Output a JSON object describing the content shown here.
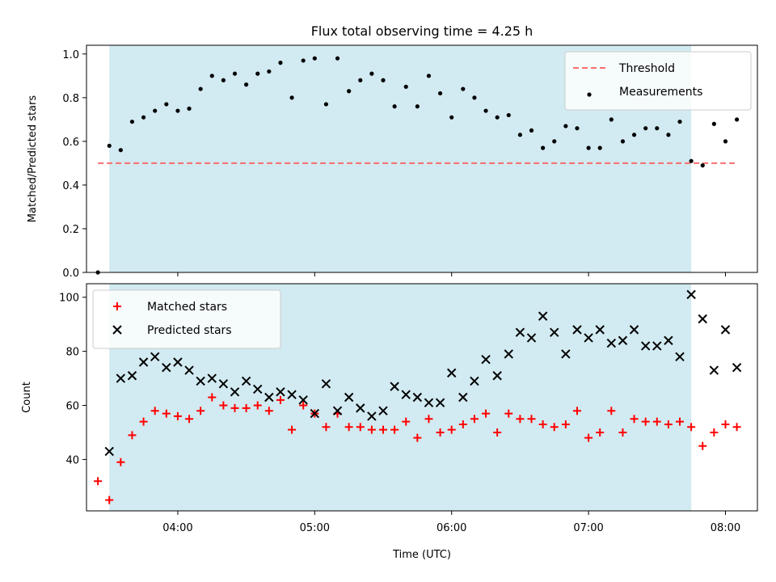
{
  "chart_data": {
    "title": "Flux total observing time = 4.25 h",
    "x_axis": {
      "label": "Time (UTC)",
      "range": [
        "03:20",
        "08:14"
      ],
      "tick_labels": [
        "04:00",
        "05:00",
        "06:00",
        "07:00",
        "08:00"
      ]
    },
    "highlight_span": {
      "start": "03:30",
      "end": "07:45",
      "color": "#add8e6"
    },
    "panels": [
      {
        "type": "scatter",
        "ylabel": "Matched/Predicted stars",
        "ylim": [
          0.0,
          1.04
        ],
        "y_tick_labels": [
          "0.0",
          "0.2",
          "0.4",
          "0.6",
          "0.8",
          "1.0"
        ],
        "grid": false,
        "legend_position": "upper-right",
        "threshold": {
          "name": "Threshold",
          "value": 0.5,
          "x_start": "03:25",
          "x_end": "08:05",
          "color": "#ff5555",
          "style": "dashed"
        },
        "series": [
          {
            "name": "Measurements",
            "color": "#000000",
            "marker": "dot",
            "points": [
              [
                "03:25",
                0.0
              ],
              [
                "03:30",
                0.58
              ],
              [
                "03:35",
                0.56
              ],
              [
                "03:40",
                0.69
              ],
              [
                "03:45",
                0.71
              ],
              [
                "03:50",
                0.74
              ],
              [
                "03:55",
                0.77
              ],
              [
                "04:00",
                0.74
              ],
              [
                "04:05",
                0.75
              ],
              [
                "04:10",
                0.84
              ],
              [
                "04:15",
                0.9
              ],
              [
                "04:20",
                0.88
              ],
              [
                "04:25",
                0.91
              ],
              [
                "04:30",
                0.86
              ],
              [
                "04:35",
                0.91
              ],
              [
                "04:40",
                0.92
              ],
              [
                "04:45",
                0.96
              ],
              [
                "04:50",
                0.8
              ],
              [
                "04:55",
                0.97
              ],
              [
                "05:00",
                0.98
              ],
              [
                "05:05",
                0.77
              ],
              [
                "05:10",
                0.98
              ],
              [
                "05:15",
                0.83
              ],
              [
                "05:20",
                0.88
              ],
              [
                "05:25",
                0.91
              ],
              [
                "05:30",
                0.88
              ],
              [
                "05:35",
                0.76
              ],
              [
                "05:40",
                0.85
              ],
              [
                "05:45",
                0.76
              ],
              [
                "05:50",
                0.9
              ],
              [
                "05:55",
                0.82
              ],
              [
                "06:00",
                0.71
              ],
              [
                "06:05",
                0.84
              ],
              [
                "06:10",
                0.8
              ],
              [
                "06:15",
                0.74
              ],
              [
                "06:20",
                0.71
              ],
              [
                "06:25",
                0.72
              ],
              [
                "06:30",
                0.63
              ],
              [
                "06:35",
                0.65
              ],
              [
                "06:40",
                0.57
              ],
              [
                "06:45",
                0.6
              ],
              [
                "06:50",
                0.67
              ],
              [
                "06:55",
                0.66
              ],
              [
                "07:00",
                0.57
              ],
              [
                "07:05",
                0.57
              ],
              [
                "07:10",
                0.7
              ],
              [
                "07:15",
                0.6
              ],
              [
                "07:20",
                0.63
              ],
              [
                "07:25",
                0.66
              ],
              [
                "07:30",
                0.66
              ],
              [
                "07:35",
                0.63
              ],
              [
                "07:40",
                0.69
              ],
              [
                "07:45",
                0.51
              ],
              [
                "07:50",
                0.49
              ],
              [
                "07:55",
                0.68
              ],
              [
                "08:00",
                0.6
              ],
              [
                "08:05",
                0.7
              ]
            ]
          }
        ]
      },
      {
        "type": "scatter",
        "ylabel": "Count",
        "ylim": [
          21,
          105
        ],
        "y_tick_labels": [
          "40",
          "60",
          "80",
          "100"
        ],
        "grid": false,
        "legend_position": "upper-left",
        "series": [
          {
            "name": "Matched stars",
            "color": "#ff0000",
            "marker": "plus",
            "points": [
              [
                "03:25",
                32
              ],
              [
                "03:30",
                25
              ],
              [
                "03:35",
                39
              ],
              [
                "03:40",
                49
              ],
              [
                "03:45",
                54
              ],
              [
                "03:50",
                58
              ],
              [
                "03:55",
                57
              ],
              [
                "04:00",
                56
              ],
              [
                "04:05",
                55
              ],
              [
                "04:10",
                58
              ],
              [
                "04:15",
                63
              ],
              [
                "04:20",
                60
              ],
              [
                "04:25",
                59
              ],
              [
                "04:30",
                59
              ],
              [
                "04:35",
                60
              ],
              [
                "04:40",
                58
              ],
              [
                "04:45",
                62
              ],
              [
                "04:50",
                51
              ],
              [
                "04:55",
                60
              ],
              [
                "05:00",
                57
              ],
              [
                "05:05",
                52
              ],
              [
                "05:10",
                57
              ],
              [
                "05:15",
                52
              ],
              [
                "05:20",
                52
              ],
              [
                "05:25",
                51
              ],
              [
                "05:30",
                51
              ],
              [
                "05:35",
                51
              ],
              [
                "05:40",
                54
              ],
              [
                "05:45",
                48
              ],
              [
                "05:50",
                55
              ],
              [
                "05:55",
                50
              ],
              [
                "06:00",
                51
              ],
              [
                "06:05",
                53
              ],
              [
                "06:10",
                55
              ],
              [
                "06:15",
                57
              ],
              [
                "06:20",
                50
              ],
              [
                "06:25",
                57
              ],
              [
                "06:30",
                55
              ],
              [
                "06:35",
                55
              ],
              [
                "06:40",
                53
              ],
              [
                "06:45",
                52
              ],
              [
                "06:50",
                53
              ],
              [
                "06:55",
                58
              ],
              [
                "07:00",
                48
              ],
              [
                "07:05",
                50
              ],
              [
                "07:10",
                58
              ],
              [
                "07:15",
                50
              ],
              [
                "07:20",
                55
              ],
              [
                "07:25",
                54
              ],
              [
                "07:30",
                54
              ],
              [
                "07:35",
                53
              ],
              [
                "07:40",
                54
              ],
              [
                "07:45",
                52
              ],
              [
                "07:50",
                45
              ],
              [
                "07:55",
                50
              ],
              [
                "08:00",
                53
              ],
              [
                "08:05",
                52
              ]
            ]
          },
          {
            "name": "Predicted stars",
            "color": "#000000",
            "marker": "x",
            "points": [
              [
                "03:30",
                43
              ],
              [
                "03:35",
                70
              ],
              [
                "03:40",
                71
              ],
              [
                "03:45",
                76
              ],
              [
                "03:50",
                78
              ],
              [
                "03:55",
                74
              ],
              [
                "04:00",
                76
              ],
              [
                "04:05",
                73
              ],
              [
                "04:10",
                69
              ],
              [
                "04:15",
                70
              ],
              [
                "04:20",
                68
              ],
              [
                "04:25",
                65
              ],
              [
                "04:30",
                69
              ],
              [
                "04:35",
                66
              ],
              [
                "04:40",
                63
              ],
              [
                "04:45",
                65
              ],
              [
                "04:50",
                64
              ],
              [
                "04:55",
                62
              ],
              [
                "05:00",
                57
              ],
              [
                "05:05",
                68
              ],
              [
                "05:10",
                58
              ],
              [
                "05:15",
                63
              ],
              [
                "05:20",
                59
              ],
              [
                "05:25",
                56
              ],
              [
                "05:30",
                58
              ],
              [
                "05:35",
                67
              ],
              [
                "05:40",
                64
              ],
              [
                "05:45",
                63
              ],
              [
                "05:50",
                61
              ],
              [
                "05:55",
                61
              ],
              [
                "06:00",
                72
              ],
              [
                "06:05",
                63
              ],
              [
                "06:10",
                69
              ],
              [
                "06:15",
                77
              ],
              [
                "06:20",
                71
              ],
              [
                "06:25",
                79
              ],
              [
                "06:30",
                87
              ],
              [
                "06:35",
                85
              ],
              [
                "06:40",
                93
              ],
              [
                "06:45",
                87
              ],
              [
                "06:50",
                79
              ],
              [
                "06:55",
                88
              ],
              [
                "07:00",
                85
              ],
              [
                "07:05",
                88
              ],
              [
                "07:10",
                83
              ],
              [
                "07:15",
                84
              ],
              [
                "07:20",
                88
              ],
              [
                "07:25",
                82
              ],
              [
                "07:30",
                82
              ],
              [
                "07:35",
                84
              ],
              [
                "07:40",
                78
              ],
              [
                "07:45",
                101
              ],
              [
                "07:50",
                92
              ],
              [
                "07:55",
                73
              ],
              [
                "08:00",
                88
              ],
              [
                "08:05",
                74
              ]
            ]
          }
        ]
      }
    ]
  }
}
